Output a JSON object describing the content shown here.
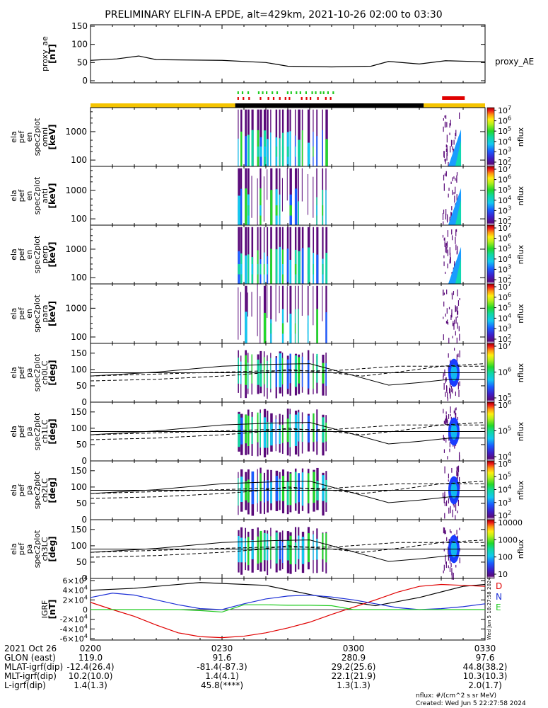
{
  "title": "PRELIMINARY ELFIN-A EPDE, alt=429km, 2021-10-26 02:00 to 03:30",
  "created": "Created: Wed Jun  5 22:27:58 2024",
  "nflux_units": "nflux: #/(cm^2 s sr MeV)",
  "side_stamp": "Wed Jun  5 18:27:58 2024",
  "colors": {
    "gold": "#f5c400",
    "black": "#000000",
    "red": "#e00000",
    "green": "#22cc22",
    "grf_d": "#e00000",
    "grf_n": "#1c2fd6",
    "grf_e": "#22cc22"
  },
  "x_axis": {
    "ticks": [
      "0200",
      "0230",
      "0300",
      "0330"
    ],
    "rows": [
      {
        "label": "2021 Oct 26",
        "values": [
          "0200",
          "0230",
          "0300",
          "0330"
        ]
      },
      {
        "label": "GLON (east)",
        "values": [
          "119.0",
          "91.6",
          "280.9",
          "97.6"
        ]
      },
      {
        "label": "MLAT-igrf(dip)",
        "values": [
          "-12.4(26.4)",
          "-81.4(-87.3)",
          "29.2(25.6)",
          "44.8(38.2)"
        ]
      },
      {
        "label": "MLT-igrf(dip)",
        "values": [
          "10.2(10.0)",
          "1.4(4.1)",
          "22.1(21.9)",
          "10.3(10.3)"
        ]
      },
      {
        "label": "L-igrf(dip)",
        "values": [
          "1.4(1.3)",
          "45.8(****)",
          "1.3(1.3)",
          "2.0(1.7)"
        ]
      }
    ]
  },
  "chart_data": [
    {
      "type": "line",
      "id": "proxy_ae",
      "ylabel": [
        "proxy_ae",
        "[nT]"
      ],
      "legend": "proxy_AE",
      "ylim": [
        0,
        150
      ],
      "yticks": [
        "0",
        "50",
        "100",
        "150"
      ],
      "x": [
        "02:00",
        "02:06",
        "02:11",
        "02:15",
        "02:30",
        "02:40",
        "02:45",
        "02:55",
        "03:04",
        "03:08",
        "03:15",
        "03:21",
        "03:30"
      ],
      "values": [
        56,
        60,
        68,
        58,
        56,
        50,
        40,
        38,
        40,
        53,
        46,
        55,
        52
      ]
    },
    {
      "type": "heatmap",
      "id": "en_omni",
      "ylabel": [
        "ela",
        "pef",
        "en",
        "spec2plot",
        "omni",
        "[keV]"
      ],
      "ylim": [
        60,
        7000
      ],
      "yscale": "log",
      "yticks": [
        "100",
        "1000"
      ],
      "colorbar": {
        "label": "nflux",
        "ticks": [
          "10^2",
          "10^3",
          "10^4",
          "10^5",
          "10^6",
          "10^7"
        ]
      }
    },
    {
      "type": "heatmap",
      "id": "en_anti",
      "ylabel": [
        "ela",
        "pef",
        "en",
        "spec2plot",
        "anti",
        "[keV]"
      ],
      "ylim": [
        60,
        7000
      ],
      "yscale": "log",
      "yticks": [
        "100",
        "1000"
      ],
      "colorbar": {
        "label": "nflux",
        "ticks": [
          "10^2",
          "10^3",
          "10^4",
          "10^5",
          "10^6",
          "10^7"
        ]
      }
    },
    {
      "type": "heatmap",
      "id": "en_perp",
      "ylabel": [
        "ela",
        "pef",
        "en",
        "spec2plot",
        "perp",
        "[keV]"
      ],
      "ylim": [
        60,
        7000
      ],
      "yscale": "log",
      "yticks": [
        "100",
        "1000"
      ],
      "colorbar": {
        "label": "nflux",
        "ticks": [
          "10^2",
          "10^3",
          "10^4",
          "10^5",
          "10^6",
          "10^7"
        ]
      }
    },
    {
      "type": "heatmap",
      "id": "en_para",
      "ylabel": [
        "ela",
        "pef",
        "en",
        "spec2plot",
        "para",
        "[keV]"
      ],
      "ylim": [
        60,
        7000
      ],
      "yscale": "log",
      "yticks": [
        "100",
        "1000"
      ],
      "colorbar": {
        "label": "nflux",
        "ticks": [
          "10^2",
          "10^3",
          "10^4",
          "10^5",
          "10^6",
          "10^7"
        ]
      }
    },
    {
      "type": "heatmap",
      "id": "pa_ch0LC",
      "ylabel": [
        "ela",
        "pef",
        "pa",
        "spec2plot",
        "ch0LC",
        "[deg]"
      ],
      "ylim": [
        0,
        180
      ],
      "yticks": [
        "0",
        "50",
        "100",
        "150"
      ],
      "colorbar": {
        "label": "nflux",
        "ticks": [
          "10^5",
          "10^6",
          "10^7"
        ]
      }
    },
    {
      "type": "heatmap",
      "id": "pa_ch1LC",
      "ylabel": [
        "ela",
        "pef",
        "pa",
        "spec2plot",
        "ch1LC",
        "[deg]"
      ],
      "ylim": [
        0,
        180
      ],
      "yticks": [
        "0",
        "50",
        "100",
        "150"
      ],
      "colorbar": {
        "label": "nflux",
        "ticks": [
          "10^4",
          "10^5",
          "10^6"
        ]
      }
    },
    {
      "type": "heatmap",
      "id": "pa_ch2LC",
      "ylabel": [
        "ela",
        "pef",
        "pa",
        "spec2plot",
        "ch2LC",
        "[deg]"
      ],
      "ylim": [
        0,
        180
      ],
      "yticks": [
        "0",
        "50",
        "100",
        "150"
      ],
      "colorbar": {
        "label": "nflux",
        "ticks": [
          "10^2",
          "10^3",
          "10^4",
          "10^5",
          "10^6"
        ]
      }
    },
    {
      "type": "heatmap",
      "id": "pa_ch3LC",
      "ylabel": [
        "ela",
        "pef",
        "pa",
        "spec2plot",
        "ch3LC",
        "[deg]"
      ],
      "ylim": [
        0,
        180
      ],
      "yticks": [
        "0",
        "50",
        "100",
        "150"
      ],
      "colorbar": {
        "label": "nflux",
        "ticks": [
          "10",
          "100",
          "1000",
          "10000"
        ]
      }
    },
    {
      "type": "line",
      "id": "igrf",
      "ylabel": [
        "IGRF",
        "[nT]"
      ],
      "ylim": [
        -60000,
        60000
      ],
      "yticks": [
        "-6×10^4",
        "-4×10^4",
        "-2×10^4",
        "0",
        "2×10^4",
        "4×10^4",
        "6×10^4"
      ],
      "legend": [
        "D",
        "N",
        "E"
      ],
      "x": [
        "02:00",
        "02:05",
        "02:10",
        "02:15",
        "02:20",
        "02:25",
        "02:30",
        "02:35",
        "02:40",
        "02:45",
        "02:50",
        "02:55",
        "03:00",
        "03:05",
        "03:10",
        "03:15",
        "03:20",
        "03:25",
        "03:30"
      ],
      "series": [
        {
          "name": "D",
          "values": [
            15000,
            0,
            -14000,
            -32000,
            -48000,
            -56000,
            -58000,
            -55000,
            -48000,
            -38000,
            -26000,
            -10000,
            5000,
            20000,
            36000,
            48000,
            52000,
            50000,
            48000
          ]
        },
        {
          "name": "N",
          "values": [
            25000,
            34000,
            30000,
            20000,
            10000,
            2000,
            0,
            12000,
            22000,
            28000,
            30000,
            26000,
            20000,
            12000,
            4000,
            0,
            2000,
            6000,
            12000
          ]
        },
        {
          "name": "E",
          "values": [
            0,
            0,
            0,
            0,
            0,
            -2000,
            -5000,
            10000,
            10000,
            9000,
            9000,
            8000,
            0,
            0,
            0,
            0,
            0,
            0,
            0
          ]
        }
      ]
    }
  ]
}
